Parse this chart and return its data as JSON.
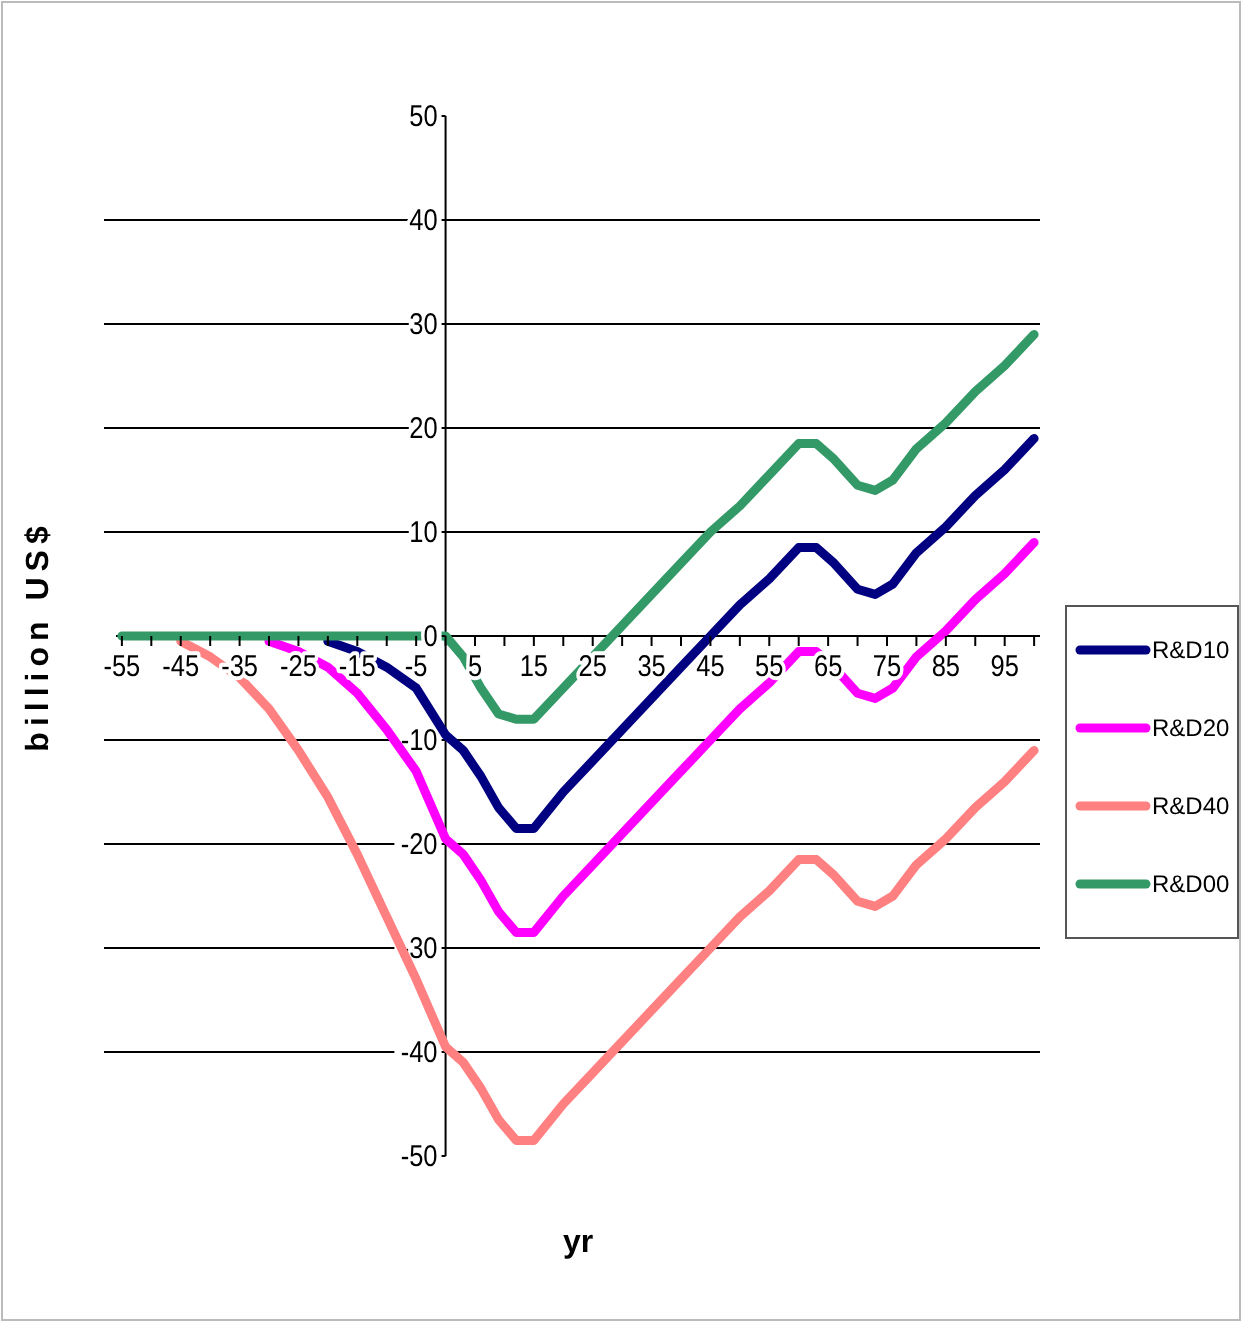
{
  "chart_data": {
    "type": "line",
    "xlabel": "yr",
    "ylabel": "billion US$",
    "x": [
      -55,
      -50,
      -45,
      -40,
      -35,
      -30,
      -25,
      -20,
      -15,
      -10,
      -5,
      0,
      3,
      6,
      9,
      12,
      15,
      20,
      25,
      30,
      35,
      40,
      45,
      50,
      55,
      60,
      63,
      66,
      70,
      73,
      76,
      80,
      85,
      90,
      95,
      100
    ],
    "series": [
      {
        "name": "R&D10",
        "color": "#000080",
        "values": [
          null,
          null,
          null,
          null,
          null,
          null,
          null,
          -0.5,
          -1.5,
          -3,
          -5,
          -9.5,
          -11,
          -13.5,
          -16.5,
          -18.5,
          -18.5,
          -15,
          -12,
          -9,
          -6,
          -3,
          0,
          3,
          5.5,
          8.5,
          8.5,
          7,
          4.5,
          4,
          5,
          8,
          10.5,
          13.5,
          16,
          19
        ]
      },
      {
        "name": "R&D20",
        "color": "#ff00ff",
        "values": [
          null,
          null,
          null,
          null,
          null,
          -0.5,
          -1.5,
          -3,
          -5.5,
          -9,
          -13,
          -19.5,
          -21,
          -23.5,
          -26.5,
          -28.5,
          -28.5,
          -25,
          -22,
          -19,
          -16,
          -13,
          -10,
          -7,
          -4.5,
          -1.5,
          -1.5,
          -3,
          -5.5,
          -6,
          -5,
          -2,
          0.5,
          3.5,
          6,
          9
        ]
      },
      {
        "name": "R&D40",
        "color": "#ff8080",
        "values": [
          null,
          null,
          -0.5,
          -2,
          -4,
          -7,
          -11,
          -15.5,
          -21,
          -27,
          -33,
          -39.5,
          -41,
          -43.5,
          -46.5,
          -48.5,
          -48.5,
          -45,
          -42,
          -39,
          -36,
          -33,
          -30,
          -27,
          -24.5,
          -21.5,
          -21.5,
          -23,
          -25.5,
          -26,
          -25,
          -22,
          -19.5,
          -16.5,
          -14,
          -11
        ]
      },
      {
        "name": "R&D00",
        "color": "#339966",
        "values": [
          0,
          0,
          0,
          0,
          0,
          0,
          0,
          0,
          0,
          0,
          0,
          0,
          -2,
          -5,
          -7.5,
          -8,
          -8,
          -5,
          -2,
          1,
          4,
          7,
          10,
          12.5,
          15.5,
          18.5,
          18.5,
          17,
          14.5,
          14,
          15,
          18,
          20.5,
          23.5,
          26,
          29
        ]
      }
    ],
    "xlim": [
      -56,
      101
    ],
    "xticks": [
      -55,
      {
        "value": -50,
        "label": null
      },
      -45,
      {
        "value": -40,
        "label": null
      },
      -35,
      {
        "value": -30,
        "label": null
      },
      -25,
      {
        "value": -20,
        "label": null
      },
      -15,
      {
        "value": -10,
        "label": null
      },
      -5,
      {
        "value": 0,
        "label": null
      },
      5,
      {
        "value": 10,
        "label": null
      },
      15,
      {
        "value": 20,
        "label": null
      },
      25,
      {
        "value": 30,
        "label": null
      },
      35,
      {
        "value": 40,
        "label": null
      },
      45,
      {
        "value": 50,
        "label": null
      },
      55,
      {
        "value": 60,
        "label": null
      },
      65,
      {
        "value": 70,
        "label": null
      },
      75,
      {
        "value": 80,
        "label": null
      },
      85,
      {
        "value": 90,
        "label": null
      },
      95,
      {
        "value": 100,
        "label": null
      }
    ],
    "ylim": [
      -50,
      50
    ],
    "yticks": [
      -50,
      -40,
      -30,
      -20,
      -10,
      0,
      10,
      20,
      30,
      40,
      50
    ],
    "grid": "y",
    "legend": "right",
    "marker": "none",
    "line_style": "solid"
  }
}
